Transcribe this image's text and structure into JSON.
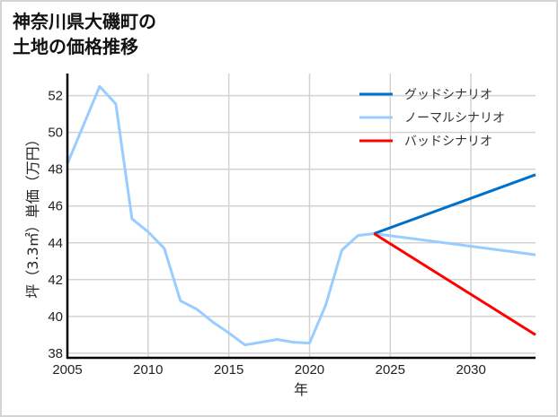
{
  "title": "神奈川県大磯町の\n土地の価格推移",
  "chart_data": {
    "type": "line",
    "title": "神奈川県大磯町の土地の価格推移",
    "xlabel": "年",
    "ylabel": "坪（3.3㎡）単価（万円）",
    "xlim": [
      2005,
      2034
    ],
    "ylim": [
      37.75,
      53.2
    ],
    "xticks": [
      2005,
      2010,
      2015,
      2020,
      2025,
      2030
    ],
    "yticks": [
      38,
      40,
      42,
      44,
      46,
      48,
      50,
      52
    ],
    "grid": true,
    "legend_position": "upper right",
    "series": [
      {
        "name": "グッドシナリオ",
        "color": "#0070c8",
        "x": [
          2024,
          2034
        ],
        "values": [
          44.5,
          47.7
        ]
      },
      {
        "name": "ノーマルシナリオ",
        "color": "#99ccff",
        "x": [
          2005,
          2007,
          2008,
          2009,
          2010,
          2011,
          2012,
          2013,
          2014,
          2015,
          2016,
          2017,
          2018,
          2019,
          2020,
          2021,
          2022,
          2023,
          2024,
          2034
        ],
        "values": [
          48.3,
          52.5,
          51.55,
          45.3,
          44.6,
          43.7,
          40.85,
          40.4,
          39.7,
          39.1,
          38.45,
          38.6,
          38.75,
          38.6,
          38.55,
          40.6,
          43.6,
          44.4,
          44.5,
          43.35
        ]
      },
      {
        "name": "バッドシナリオ",
        "color": "#ff0000",
        "x": [
          2024,
          2034
        ],
        "values": [
          44.5,
          39.0
        ]
      }
    ]
  },
  "colors": {
    "grid": "#d3d3d3",
    "axis": "#000000",
    "border": "#d4d4d4"
  }
}
